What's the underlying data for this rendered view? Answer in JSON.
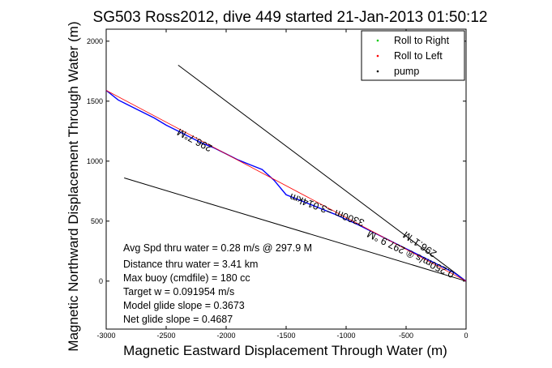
{
  "chart_data": {
    "type": "line",
    "title": "SG503 Ross2012, dive 449 started 21-Jan-2013 01:50:12",
    "xlabel": "Magnetic Eastward Displacement Through Water (m)",
    "ylabel": "Magnetic Northward Displacement Through Water (m)",
    "xlim": [
      -3000,
      0
    ],
    "ylim": [
      -400,
      2100
    ],
    "x_ticks": [
      -3000,
      -2500,
      -2000,
      -1500,
      -1000,
      -500,
      0
    ],
    "y_ticks": [
      0,
      500,
      1000,
      1500,
      2000
    ],
    "grid": false,
    "legend_position": "top-right",
    "legend": [
      {
        "label": "Roll to Right",
        "color": "#00cc00"
      },
      {
        "label": "Roll to Left",
        "color": "#ff0000"
      },
      {
        "label": "pump",
        "color": "#000000"
      }
    ],
    "series": [
      {
        "color": "#0000ff",
        "x": [
          -3000,
          -2900,
          -2800,
          -2700,
          -2600,
          -2500,
          -2400,
          -2300,
          -2200,
          -2100,
          -2000,
          -1900,
          -1800,
          -1700,
          -1600,
          -1500,
          -1400,
          -1300,
          -1200,
          -1100,
          -1000,
          -900,
          -800,
          -700,
          -600,
          -500,
          -400,
          -300,
          -200,
          -100,
          -30,
          0
        ],
        "y": [
          1590,
          1510,
          1460,
          1410,
          1360,
          1300,
          1250,
          1200,
          1150,
          1110,
          1060,
          1010,
          970,
          930,
          840,
          720,
          680,
          640,
          600,
          560,
          515,
          470,
          420,
          370,
          320,
          270,
          220,
          170,
          120,
          70,
          20,
          0
        ]
      },
      {
        "color": "#ff0000",
        "x": [
          -3000,
          0
        ],
        "y": [
          1590,
          0
        ]
      }
    ],
    "reference_lines": [
      {
        "color": "#000000",
        "x": [
          -2400,
          0
        ],
        "y": [
          1800,
          0
        ]
      },
      {
        "color": "#000000",
        "x": [
          -2850,
          0
        ],
        "y": [
          860,
          0
        ]
      }
    ],
    "annotations": [
      {
        "text": "296.7°M",
        "x": -2250,
        "y": 1200,
        "angle": 208
      },
      {
        "text": "0.250m/s ® 297.9 °M",
        "x": -450,
        "y": 250,
        "angle": 206
      },
      {
        "text": "296.1°M",
        "x": -370,
        "y": 330,
        "angle": 214
      },
      {
        "text": "3300m =3.014km",
        "x": -1150,
        "y": 620,
        "angle": 200
      }
    ],
    "stats": [
      "Avg Spd thru water =  0.28 m/s @ 297.9   M",
      "Distance thru water =  3.41 km",
      "Max buoy (cmdfile) = 180 cc",
      "Target w = 0.091954 m/s",
      "Model glide slope = 0.3673",
      "Net glide slope = 0.4687"
    ]
  }
}
